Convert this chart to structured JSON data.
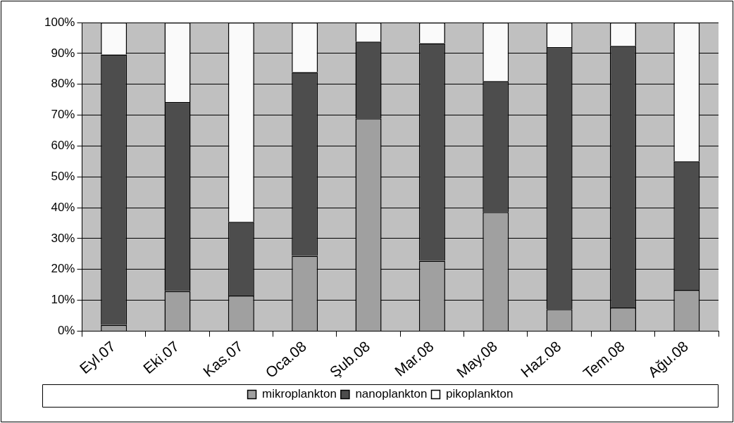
{
  "chart_data": {
    "type": "bar",
    "stacked": true,
    "categories": [
      "Eyl.07",
      "Eki.07",
      "Kas.07",
      "Oca.08",
      "Şub.08",
      "Mar.08",
      "May.08",
      "Haz.08",
      "Tem.08",
      "Ağu.08"
    ],
    "series": [
      {
        "name": "mikroplankton",
        "color": "#a0a0a0",
        "values": [
          2,
          12.9,
          11.5,
          24.4,
          68.9,
          22.8,
          38.6,
          7.1,
          7.6,
          13.3
        ]
      },
      {
        "name": "nanoplankton",
        "color": "#4d4d4d",
        "values": [
          87.6,
          61.3,
          23.9,
          59.5,
          24.9,
          70.5,
          42.4,
          84.9,
          84.8,
          41.7
        ]
      },
      {
        "name": "pikoplankton",
        "color": "#fafafa",
        "values": [
          10.4,
          25.8,
          64.6,
          16.1,
          6.2,
          6.7,
          19,
          8,
          7.6,
          45
        ]
      }
    ],
    "ylim": [
      0,
      100
    ],
    "yticks": [
      {
        "value": 0,
        "label": "0%"
      },
      {
        "value": 10,
        "label": "10%"
      },
      {
        "value": 20,
        "label": "20%"
      },
      {
        "value": 30,
        "label": "30%"
      },
      {
        "value": 40,
        "label": "40%"
      },
      {
        "value": 50,
        "label": "50%"
      },
      {
        "value": 60,
        "label": "60%"
      },
      {
        "value": 70,
        "label": "70%"
      },
      {
        "value": 80,
        "label": "80%"
      },
      {
        "value": 90,
        "label": "90%"
      },
      {
        "value": 100,
        "label": "100%"
      }
    ],
    "grid": "y",
    "legend": "bottom"
  }
}
